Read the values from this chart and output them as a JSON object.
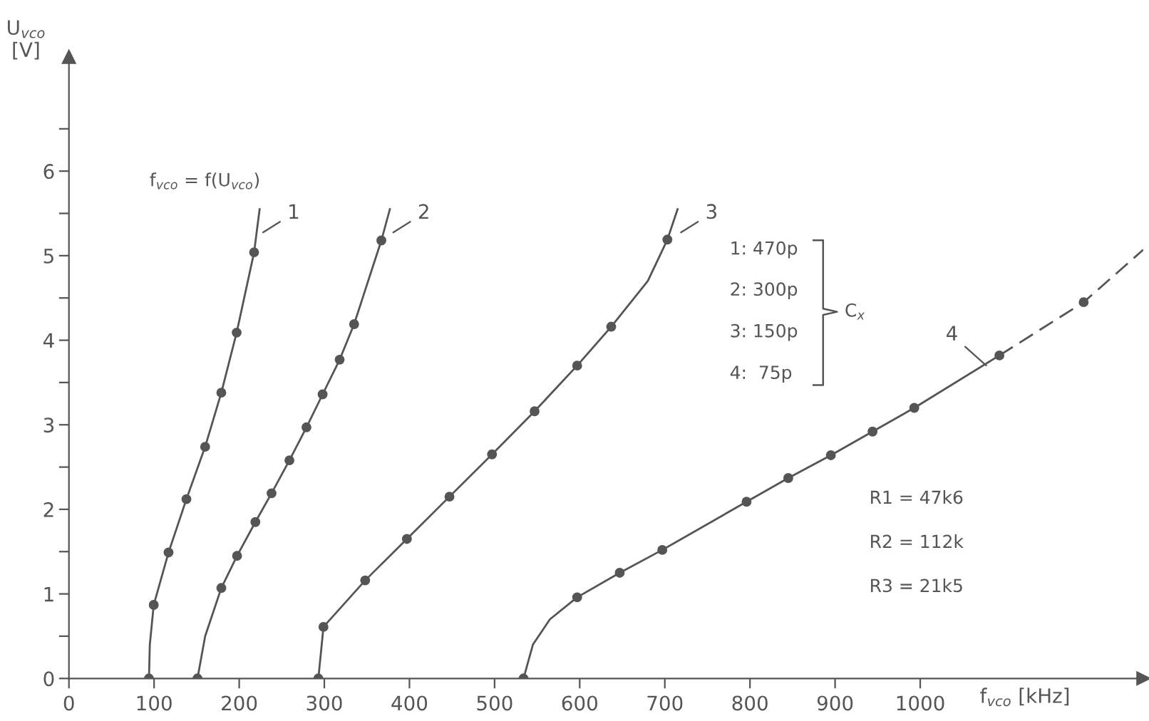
{
  "chart_data": {
    "type": "line",
    "xlabel": "f$_{vco}$ [kHz]",
    "ylabel": "U$_{vco}$\n[V]",
    "xlim": [
      0,
      1262
    ],
    "ylim": [
      0,
      7.35
    ],
    "xticks": [
      0,
      100,
      200,
      300,
      400,
      500,
      600,
      700,
      800,
      900,
      1000
    ],
    "yticks": [
      0,
      {
        "value": 0.5,
        "label": null
      },
      1,
      {
        "value": 1.5,
        "label": null
      },
      2,
      {
        "value": 2.5,
        "label": null
      },
      3,
      {
        "value": 3.5,
        "label": null
      },
      4,
      {
        "value": 4.5,
        "label": null
      },
      5,
      {
        "value": 5.5,
        "label": null
      },
      6,
      {
        "value": 6.5,
        "label": null
      }
    ],
    "grid": false,
    "legend": false,
    "annotations": [
      "f$_{vco}$ = f(U$_{vco}$)",
      "1: 470p",
      "2: 300p",
      "3: 150p",
      "4:  75p",
      "C$_{x}$",
      "R1 = 47k6",
      "R2 = 112k",
      "R3 = 21k5"
    ],
    "series": [
      {
        "name": "1",
        "type": "line",
        "color": "#555555",
        "marker": "none",
        "line_style": "solid",
        "x": [
          94,
          95,
          99.6,
          117,
          138,
          160,
          179,
          197,
          217.5,
          224
        ],
        "values": [
          0,
          0.4,
          0.87,
          1.49,
          2.12,
          2.74,
          3.38,
          4.09,
          5.04,
          5.55
        ]
      },
      {
        "name": "2",
        "type": "line",
        "color": "#555555",
        "marker": "none",
        "line_style": "solid",
        "x": [
          151,
          160,
          179,
          197.5,
          219,
          238,
          259,
          279,
          298,
          318,
          335,
          367,
          377
        ],
        "values": [
          0,
          0.5,
          1.07,
          1.45,
          1.85,
          2.19,
          2.58,
          2.97,
          3.36,
          3.77,
          4.19,
          5.18,
          5.55
        ]
      },
      {
        "name": "3",
        "type": "line",
        "color": "#555555",
        "marker": "none",
        "line_style": "solid",
        "x": [
          293,
          299,
          348,
          397,
          447,
          497,
          547,
          597,
          637,
          680,
          703,
          715
        ],
        "values": [
          0,
          0.61,
          1.16,
          1.65,
          2.15,
          2.65,
          3.16,
          3.7,
          4.16,
          4.7,
          5.19,
          5.55
        ]
      },
      {
        "name": "4",
        "type": "line",
        "color": "#555555",
        "marker": "none",
        "line_style": "solid",
        "x": [
          534,
          545,
          565,
          597,
          647,
          697,
          796,
          845,
          895,
          944,
          993,
          1093
        ],
        "values": [
          0,
          0.4,
          0.7,
          0.96,
          1.25,
          1.52,
          2.09,
          2.37,
          2.64,
          2.92,
          3.2,
          3.82
        ]
      },
      {
        "type": "line",
        "color": "#555555",
        "marker": "none",
        "line_style": "dashed",
        "x": [
          1093,
          1192,
          1262
        ],
        "values": [
          3.82,
          4.45,
          5.07
        ]
      },
      {
        "type": "scatter",
        "color": "#555555",
        "marker": "circle",
        "x": [
          94,
          99.6,
          117,
          138,
          160,
          179,
          197,
          217.5
        ],
        "values": [
          0,
          0.87,
          1.49,
          2.12,
          2.74,
          3.38,
          4.09,
          5.04
        ]
      },
      {
        "type": "scatter",
        "color": "#555555",
        "marker": "circle",
        "x": [
          151,
          179,
          197.5,
          219,
          238,
          259,
          279,
          298,
          318,
          335,
          367
        ],
        "values": [
          0,
          1.07,
          1.45,
          1.85,
          2.19,
          2.58,
          2.97,
          3.36,
          3.77,
          4.19,
          5.18
        ]
      },
      {
        "type": "scatter",
        "color": "#555555",
        "marker": "circle",
        "x": [
          293,
          299,
          348,
          397,
          447,
          497,
          547,
          597,
          637,
          703
        ],
        "values": [
          0,
          0.61,
          1.16,
          1.65,
          2.15,
          2.65,
          3.16,
          3.7,
          4.16,
          5.19
        ]
      },
      {
        "type": "scatter",
        "color": "#555555",
        "marker": "circle",
        "x": [
          534,
          597,
          647,
          697,
          796,
          845,
          895,
          944,
          993,
          1093,
          1192
        ],
        "values": [
          0,
          0.96,
          1.25,
          1.52,
          2.09,
          2.37,
          2.64,
          2.92,
          3.2,
          3.82,
          4.45
        ]
      }
    ]
  }
}
